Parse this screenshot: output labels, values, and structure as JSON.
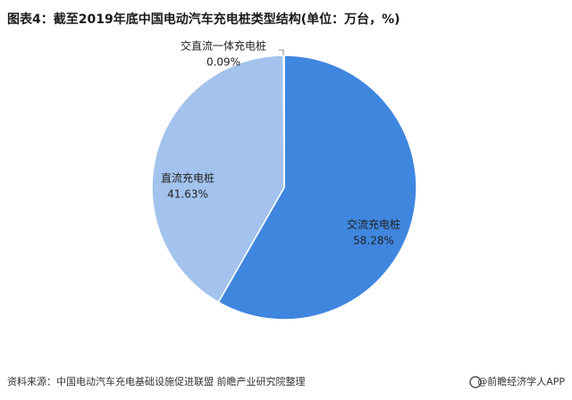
{
  "chart_data": {
    "type": "pie",
    "title": "图表4：截至2019年底中国电动汽车充电桩类型结构(单位：万台，%)",
    "categories": [
      "交流充电桩",
      "直流充电桩",
      "交直流一体充电桩"
    ],
    "values": [
      58.28,
      41.63,
      0.09
    ],
    "value_labels": [
      "58.28%",
      "41.63%",
      "0.09%"
    ],
    "colors": [
      "#3f86df",
      "#a3c3ee",
      "#6b9fe4"
    ],
    "source": "资料来源：中国电动汽车充电基础设施促进联盟 前瞻产业研究院整理",
    "credit": "@前瞻经济学人APP"
  }
}
